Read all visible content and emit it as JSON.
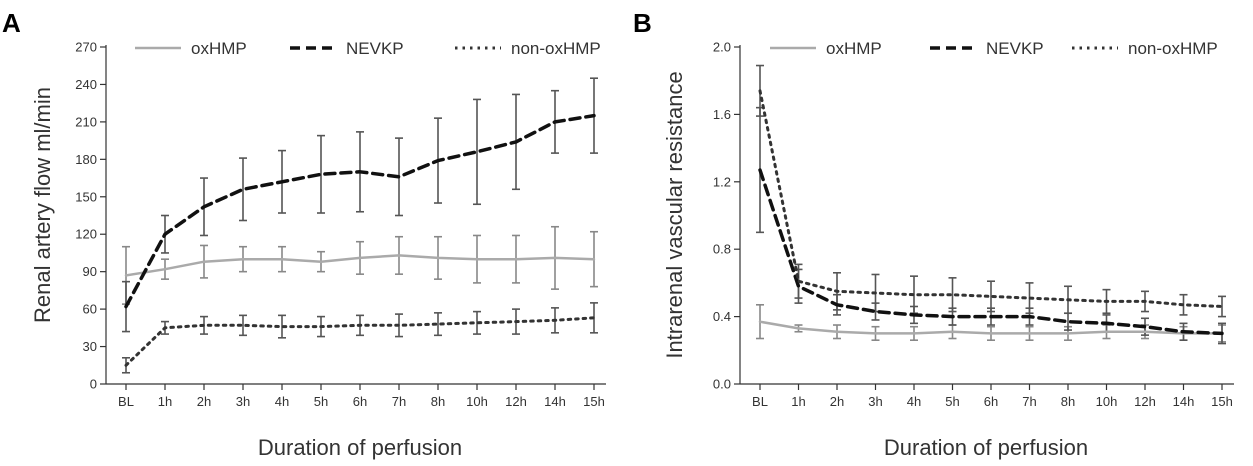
{
  "chart_data": [
    {
      "panel_label": "A",
      "type": "line",
      "xlabel": "Duration of perfusion",
      "ylabel": "Renal artery flow ml/min",
      "categories": [
        "BL",
        "1h",
        "2h",
        "3h",
        "4h",
        "5h",
        "6h",
        "7h",
        "8h",
        "10h",
        "12h",
        "14h",
        "15h"
      ],
      "ylim": [
        0,
        270
      ],
      "yticks": [
        0,
        30,
        60,
        90,
        120,
        150,
        180,
        210,
        240,
        270
      ],
      "grid": false,
      "legend_position": "top",
      "series": [
        {
          "name": "oxHMP",
          "style": "solid",
          "color": "#aaaaaa",
          "values": [
            87,
            92,
            98,
            100,
            100,
            98,
            101,
            103,
            101,
            100,
            100,
            101,
            100
          ],
          "error": [
            23,
            8,
            13,
            10,
            10,
            8,
            13,
            15,
            17,
            19,
            19,
            25,
            22
          ]
        },
        {
          "name": "NEVKP",
          "style": "dashed",
          "color": "#111111",
          "values": [
            62,
            120,
            142,
            156,
            162,
            168,
            170,
            166,
            179,
            186,
            194,
            210,
            215
          ],
          "error": [
            20,
            15,
            23,
            25,
            25,
            31,
            32,
            31,
            34,
            42,
            38,
            25,
            30
          ]
        },
        {
          "name": "non-oxHMP",
          "style": "dotted",
          "color": "#333333",
          "values": [
            15,
            45,
            47,
            47,
            46,
            46,
            47,
            47,
            48,
            49,
            50,
            51,
            53
          ],
          "error": [
            6,
            5,
            7,
            8,
            9,
            8,
            8,
            9,
            9,
            9,
            10,
            10,
            12
          ]
        }
      ]
    },
    {
      "panel_label": "B",
      "type": "line",
      "xlabel": "Duration of perfusion",
      "ylabel": "Intrarenal vascular resistance",
      "categories": [
        "BL",
        "1h",
        "2h",
        "3h",
        "4h",
        "5h",
        "6h",
        "7h",
        "8h",
        "10h",
        "12h",
        "14h",
        "15h"
      ],
      "ylim": [
        0,
        2.0
      ],
      "yticks": [
        "0.0",
        "0.4",
        "0.8",
        "1.2",
        "1.6",
        "2.0"
      ],
      "grid": false,
      "legend_position": "top",
      "series": [
        {
          "name": "oxHMP",
          "style": "solid",
          "color": "#aaaaaa",
          "values": [
            0.37,
            0.33,
            0.31,
            0.3,
            0.3,
            0.31,
            0.3,
            0.3,
            0.3,
            0.31,
            0.31,
            0.3,
            0.3
          ],
          "error": [
            0.1,
            0.02,
            0.04,
            0.04,
            0.04,
            0.04,
            0.04,
            0.04,
            0.04,
            0.04,
            0.04,
            0.04,
            0.05
          ]
        },
        {
          "name": "NEVKP",
          "style": "dashed",
          "color": "#111111",
          "values": [
            1.27,
            0.58,
            0.47,
            0.43,
            0.41,
            0.4,
            0.4,
            0.4,
            0.37,
            0.36,
            0.34,
            0.31,
            0.3
          ],
          "error": [
            0.37,
            0.1,
            0.06,
            0.05,
            0.05,
            0.05,
            0.05,
            0.05,
            0.05,
            0.05,
            0.05,
            0.05,
            0.06
          ]
        },
        {
          "name": "non-oxHMP",
          "style": "dotted",
          "color": "#333333",
          "values": [
            1.74,
            0.61,
            0.55,
            0.54,
            0.53,
            0.53,
            0.52,
            0.51,
            0.5,
            0.49,
            0.49,
            0.47,
            0.46
          ],
          "error": [
            0.15,
            0.1,
            0.11,
            0.11,
            0.11,
            0.1,
            0.09,
            0.09,
            0.08,
            0.07,
            0.06,
            0.06,
            0.06
          ]
        }
      ]
    }
  ]
}
